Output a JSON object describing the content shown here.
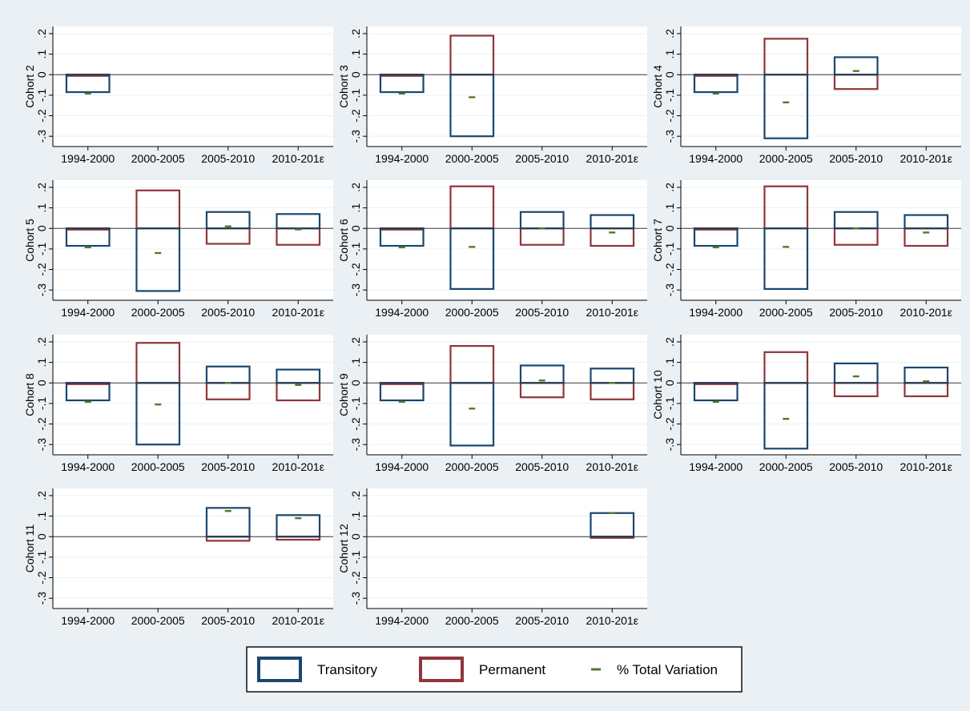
{
  "chart_data": {
    "type": "bar",
    "categories": [
      "1994-2000",
      "2000-2005",
      "2005-2010",
      "2010-2016"
    ],
    "category_labels": [
      "1994-2000",
      "2000-2005",
      "2005-2010",
      "2010-201ε"
    ],
    "y_ticks": [
      0.2,
      0.1,
      0,
      -0.1,
      -0.2,
      -0.3
    ],
    "y_tick_labels": [
      ".2",
      ".1",
      "0",
      "-.1",
      "-.2",
      "-.3"
    ],
    "ylim": [
      -0.35,
      0.235
    ],
    "grid": true,
    "reference_line": 0,
    "legend_position": "bottom-center",
    "legend": {
      "transitory": "Transitory",
      "permanent": "Permanent",
      "total": "% Total Variation"
    },
    "colors": {
      "transitory": "#1a476f",
      "permanent": "#90353b",
      "total": "#55752f",
      "background": "#eaf0f3",
      "panel": "#ffffff",
      "grid": "#eaf0f3"
    },
    "panels": [
      {
        "label": "Cohort 2",
        "transitory": [
          -0.085,
          null,
          null,
          null
        ],
        "permanent": [
          -0.002,
          null,
          null,
          null
        ],
        "total": [
          -0.092,
          null,
          null,
          null
        ]
      },
      {
        "label": "Cohort 3",
        "transitory": [
          -0.085,
          -0.3,
          null,
          null
        ],
        "permanent": [
          -0.002,
          0.19,
          null,
          null
        ],
        "total": [
          -0.092,
          -0.11,
          null,
          null
        ]
      },
      {
        "label": "Cohort 4",
        "transitory": [
          -0.085,
          -0.31,
          0.085,
          null
        ],
        "permanent": [
          -0.002,
          0.175,
          -0.07,
          null
        ],
        "total": [
          -0.092,
          -0.135,
          0.018,
          null
        ]
      },
      {
        "label": "Cohort 5",
        "transitory": [
          -0.085,
          -0.305,
          0.08,
          0.07
        ],
        "permanent": [
          -0.002,
          0.185,
          -0.075,
          -0.08
        ],
        "total": [
          -0.092,
          -0.12,
          0.01,
          -0.005
        ]
      },
      {
        "label": "Cohort 6",
        "transitory": [
          -0.085,
          -0.295,
          0.08,
          0.065
        ],
        "permanent": [
          -0.002,
          0.205,
          -0.08,
          -0.085
        ],
        "total": [
          -0.092,
          -0.09,
          0.0,
          -0.02
        ]
      },
      {
        "label": "Cohort 7",
        "transitory": [
          -0.085,
          -0.295,
          0.08,
          0.065
        ],
        "permanent": [
          -0.002,
          0.205,
          -0.08,
          -0.085
        ],
        "total": [
          -0.092,
          -0.09,
          0.0,
          -0.02
        ]
      },
      {
        "label": "Cohort 8",
        "transitory": [
          -0.085,
          -0.3,
          0.08,
          0.065
        ],
        "permanent": [
          -0.002,
          0.195,
          -0.08,
          -0.085
        ],
        "total": [
          -0.092,
          -0.105,
          0.0,
          -0.01
        ]
      },
      {
        "label": "Cohort 9",
        "transitory": [
          -0.085,
          -0.305,
          0.085,
          0.07
        ],
        "permanent": [
          -0.002,
          0.18,
          -0.07,
          -0.08
        ],
        "total": [
          -0.092,
          -0.125,
          0.012,
          0.0
        ]
      },
      {
        "label": "Cohort 10",
        "transitory": [
          -0.085,
          -0.32,
          0.095,
          0.075
        ],
        "permanent": [
          -0.002,
          0.15,
          -0.065,
          -0.065
        ],
        "total": [
          -0.092,
          -0.175,
          0.032,
          0.008
        ]
      },
      {
        "label": "Cohort 11",
        "transitory": [
          null,
          null,
          0.14,
          0.105
        ],
        "permanent": [
          null,
          null,
          -0.02,
          -0.015
        ],
        "total": [
          null,
          null,
          0.125,
          0.09
        ]
      },
      {
        "label": "Cohort 12",
        "transitory": [
          null,
          null,
          null,
          0.115
        ],
        "permanent": [
          null,
          null,
          null,
          -0.005
        ],
        "total": [
          null,
          null,
          null,
          0.115
        ]
      }
    ]
  }
}
